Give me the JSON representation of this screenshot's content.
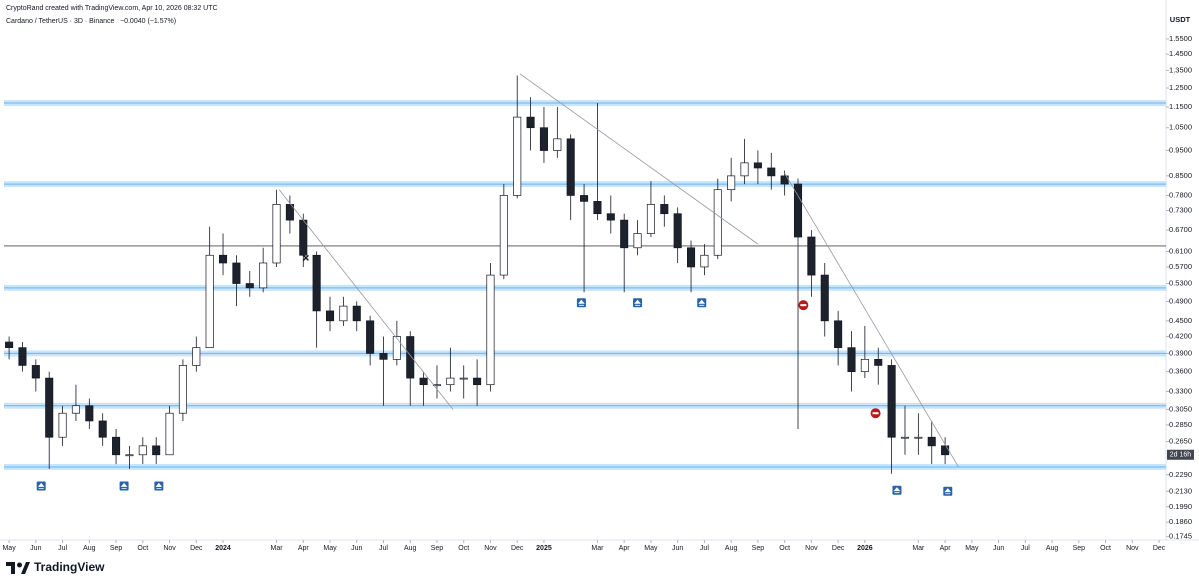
{
  "header": {
    "attribution": "CryptoRand created with TradingView.com, Apr 10, 2026 08:32 UTC",
    "symbol": "Cardano / TetherUS · 3D · Binance",
    "change": "−0.0040 (−1.57%)"
  },
  "footer": {
    "brand": "TradingView"
  },
  "chart_data": {
    "type": "candlestick",
    "y_unit": "USDT",
    "log_scale": true,
    "ylim": [
      0.172,
      1.76
    ],
    "xlim": [
      -0.34,
      43.26
    ],
    "up_color": "#ffffff",
    "down_color": "#1e222d",
    "outline_color": "#131722",
    "yticks": [
      {
        "value": 1.55,
        "label": "1.5500"
      },
      {
        "value": 1.45,
        "label": "1.4500"
      },
      {
        "value": 1.35,
        "label": "1.3500"
      },
      {
        "value": 1.25,
        "label": "1.2500"
      },
      {
        "value": 1.15,
        "label": "1.1500"
      },
      {
        "value": 1.05,
        "label": "1.0500"
      },
      {
        "value": 0.95,
        "label": "0.9500"
      },
      {
        "value": 0.85,
        "label": "0.8500"
      },
      {
        "value": 0.78,
        "label": "0.7800"
      },
      {
        "value": 0.73,
        "label": "0.7300"
      },
      {
        "value": 0.67,
        "label": "0.6700"
      },
      {
        "value": 0.61,
        "label": "0.6100"
      },
      {
        "value": 0.57,
        "label": "0.5700"
      },
      {
        "value": 0.53,
        "label": "0.5300"
      },
      {
        "value": 0.49,
        "label": "0.4900"
      },
      {
        "value": 0.45,
        "label": "0.4500"
      },
      {
        "value": 0.42,
        "label": "0.4200"
      },
      {
        "value": 0.39,
        "label": "0.3900"
      },
      {
        "value": 0.36,
        "label": "0.3600"
      },
      {
        "value": 0.33,
        "label": "0.3300"
      },
      {
        "value": 0.305,
        "label": "0.3050"
      },
      {
        "value": 0.285,
        "label": "0.2850"
      },
      {
        "value": 0.265,
        "label": "0.2650"
      },
      {
        "value": 0.229,
        "label": "0.2290"
      },
      {
        "value": 0.213,
        "label": "0.2130"
      },
      {
        "value": 0.199,
        "label": "0.1990"
      },
      {
        "value": 0.186,
        "label": "0.1860"
      },
      {
        "value": 0.1745,
        "label": "0.1745"
      }
    ],
    "xticks": [
      {
        "value": 0,
        "label": "May"
      },
      {
        "value": 1,
        "label": "Jun"
      },
      {
        "value": 2,
        "label": "Jul"
      },
      {
        "value": 3,
        "label": "Aug"
      },
      {
        "value": 4,
        "label": "Sep"
      },
      {
        "value": 5,
        "label": "Oct"
      },
      {
        "value": 6,
        "label": "Nov"
      },
      {
        "value": 7,
        "label": "Dec"
      },
      {
        "value": 8,
        "label": "2024"
      },
      {
        "value": 10,
        "label": "Mar"
      },
      {
        "value": 11,
        "label": "Apr"
      },
      {
        "value": 12,
        "label": "May"
      },
      {
        "value": 13,
        "label": "Jun"
      },
      {
        "value": 14,
        "label": "Jul"
      },
      {
        "value": 15,
        "label": "Aug"
      },
      {
        "value": 16,
        "label": "Sep"
      },
      {
        "value": 17,
        "label": "Oct"
      },
      {
        "value": 18,
        "label": "Nov"
      },
      {
        "value": 19,
        "label": "Dec"
      },
      {
        "value": 20,
        "label": "2025"
      },
      {
        "value": 22,
        "label": "Mar"
      },
      {
        "value": 23,
        "label": "Apr"
      },
      {
        "value": 24,
        "label": "May"
      },
      {
        "value": 25,
        "label": "Jun"
      },
      {
        "value": 26,
        "label": "Jul"
      },
      {
        "value": 27,
        "label": "Aug"
      },
      {
        "value": 28,
        "label": "Sep"
      },
      {
        "value": 29,
        "label": "Oct"
      },
      {
        "value": 30,
        "label": "Nov"
      },
      {
        "value": 31,
        "label": "Dec"
      },
      {
        "value": 32,
        "label": "2026"
      },
      {
        "value": 34,
        "label": "Mar"
      },
      {
        "value": 35,
        "label": "Apr"
      },
      {
        "value": 36,
        "label": "May"
      },
      {
        "value": 37,
        "label": "Jun"
      },
      {
        "value": 38,
        "label": "Jul"
      },
      {
        "value": 39,
        "label": "Aug"
      },
      {
        "value": 40,
        "label": "Sep"
      },
      {
        "value": 41,
        "label": "Oct"
      },
      {
        "value": 42,
        "label": "Nov"
      },
      {
        "value": 43,
        "label": "Dec"
      }
    ],
    "x": [
      0,
      0.5,
      1,
      1.5,
      2,
      2.5,
      3,
      3.5,
      4,
      4.5,
      5,
      5.5,
      6,
      6.5,
      7,
      7.5,
      8,
      8.5,
      9,
      9.5,
      10,
      10.5,
      11,
      11.5,
      12,
      12.5,
      13,
      13.5,
      14,
      14.5,
      15,
      15.5,
      16,
      16.5,
      17,
      17.5,
      18,
      18.5,
      19,
      19.5,
      20,
      20.5,
      21,
      21.5,
      22,
      22.5,
      23,
      23.5,
      24,
      24.5,
      25,
      25.5,
      26,
      26.5,
      27,
      27.5,
      28,
      28.5,
      29,
      29.5,
      30,
      30.5,
      31,
      31.5,
      32,
      32.5,
      33,
      33.5,
      34,
      34.5,
      35
    ],
    "open": [
      0.41,
      0.4,
      0.37,
      0.35,
      0.27,
      0.3,
      0.31,
      0.29,
      0.27,
      0.25,
      0.25,
      0.26,
      0.25,
      0.3,
      0.37,
      0.4,
      0.6,
      0.58,
      0.53,
      0.52,
      0.58,
      0.75,
      0.7,
      0.6,
      0.47,
      0.45,
      0.48,
      0.45,
      0.39,
      0.38,
      0.42,
      0.35,
      0.34,
      0.34,
      0.35,
      0.35,
      0.34,
      0.55,
      0.78,
      1.1,
      1.05,
      0.95,
      1.0,
      0.78,
      0.76,
      0.72,
      0.7,
      0.62,
      0.66,
      0.75,
      0.72,
      0.62,
      0.57,
      0.6,
      0.8,
      0.85,
      0.9,
      0.88,
      0.85,
      0.82,
      0.65,
      0.55,
      0.45,
      0.4,
      0.36,
      0.38,
      0.37,
      0.27,
      0.27,
      0.27,
      0.26
    ],
    "high": [
      0.42,
      0.41,
      0.38,
      0.36,
      0.31,
      0.34,
      0.32,
      0.3,
      0.28,
      0.26,
      0.27,
      0.27,
      0.31,
      0.38,
      0.42,
      0.68,
      0.66,
      0.6,
      0.56,
      0.62,
      0.8,
      0.78,
      0.72,
      0.61,
      0.5,
      0.5,
      0.49,
      0.46,
      0.42,
      0.45,
      0.43,
      0.36,
      0.37,
      0.4,
      0.37,
      0.38,
      0.58,
      0.82,
      1.32,
      1.2,
      1.15,
      1.15,
      1.02,
      0.82,
      1.17,
      0.78,
      0.72,
      0.7,
      0.83,
      0.78,
      0.74,
      0.64,
      0.63,
      0.84,
      0.92,
      1.0,
      0.95,
      0.94,
      0.87,
      0.84,
      0.67,
      0.58,
      0.47,
      0.43,
      0.44,
      0.4,
      0.38,
      0.31,
      0.3,
      0.29,
      0.27
    ],
    "low": [
      0.38,
      0.36,
      0.33,
      0.235,
      0.26,
      0.29,
      0.28,
      0.26,
      0.24,
      0.235,
      0.24,
      0.24,
      0.25,
      0.29,
      0.36,
      0.4,
      0.55,
      0.48,
      0.5,
      0.51,
      0.57,
      0.66,
      0.57,
      0.4,
      0.43,
      0.44,
      0.43,
      0.37,
      0.31,
      0.37,
      0.31,
      0.31,
      0.32,
      0.33,
      0.32,
      0.31,
      0.33,
      0.54,
      0.77,
      0.95,
      0.9,
      0.92,
      0.7,
      0.51,
      0.7,
      0.66,
      0.51,
      0.6,
      0.65,
      0.68,
      0.58,
      0.51,
      0.55,
      0.59,
      0.76,
      0.82,
      0.82,
      0.8,
      0.78,
      0.28,
      0.5,
      0.42,
      0.37,
      0.33,
      0.35,
      0.34,
      0.23,
      0.25,
      0.25,
      0.24,
      0.24
    ],
    "close": [
      0.4,
      0.37,
      0.35,
      0.27,
      0.3,
      0.31,
      0.29,
      0.27,
      0.25,
      0.25,
      0.26,
      0.25,
      0.3,
      0.37,
      0.4,
      0.6,
      0.58,
      0.53,
      0.52,
      0.58,
      0.75,
      0.7,
      0.6,
      0.47,
      0.45,
      0.48,
      0.45,
      0.39,
      0.38,
      0.42,
      0.35,
      0.34,
      0.34,
      0.35,
      0.35,
      0.34,
      0.55,
      0.78,
      1.1,
      1.05,
      0.95,
      1.0,
      0.78,
      0.76,
      0.72,
      0.7,
      0.62,
      0.66,
      0.75,
      0.72,
      0.62,
      0.57,
      0.6,
      0.8,
      0.85,
      0.9,
      0.88,
      0.85,
      0.82,
      0.65,
      0.55,
      0.45,
      0.4,
      0.36,
      0.38,
      0.37,
      0.27,
      0.27,
      0.27,
      0.26,
      0.25
    ],
    "levels": [
      {
        "value": 1.17,
        "style": "zone"
      },
      {
        "value": 0.82,
        "style": "zone"
      },
      {
        "value": 0.625,
        "style": "line"
      },
      {
        "value": 0.52,
        "style": "zone"
      },
      {
        "value": 0.39,
        "style": "zone"
      },
      {
        "value": 0.31,
        "style": "zone"
      },
      {
        "value": 0.237,
        "style": "zone"
      }
    ],
    "trendlines": [
      {
        "x": [
          10.1,
          16.6
        ],
        "y": [
          0.8,
          0.305
        ]
      },
      {
        "x": [
          19.1,
          28.0
        ],
        "y": [
          1.33,
          0.63
        ]
      },
      {
        "x": [
          29.0,
          35.5
        ],
        "y": [
          0.86,
          0.237
        ]
      }
    ],
    "buy_signals": {
      "x": [
        1.2,
        4.3,
        5.6,
        21.4,
        23.5,
        25.9,
        33.2,
        35.1
      ],
      "y": [
        0.218,
        0.218,
        0.218,
        0.487,
        0.487,
        0.487,
        0.214,
        0.213
      ]
    },
    "sell_signals": {
      "x": [
        29.7,
        32.4
      ],
      "y": [
        0.482,
        0.3
      ]
    },
    "cross": {
      "x": 11.1,
      "y": 0.593
    },
    "countdown": "2d 16h"
  }
}
